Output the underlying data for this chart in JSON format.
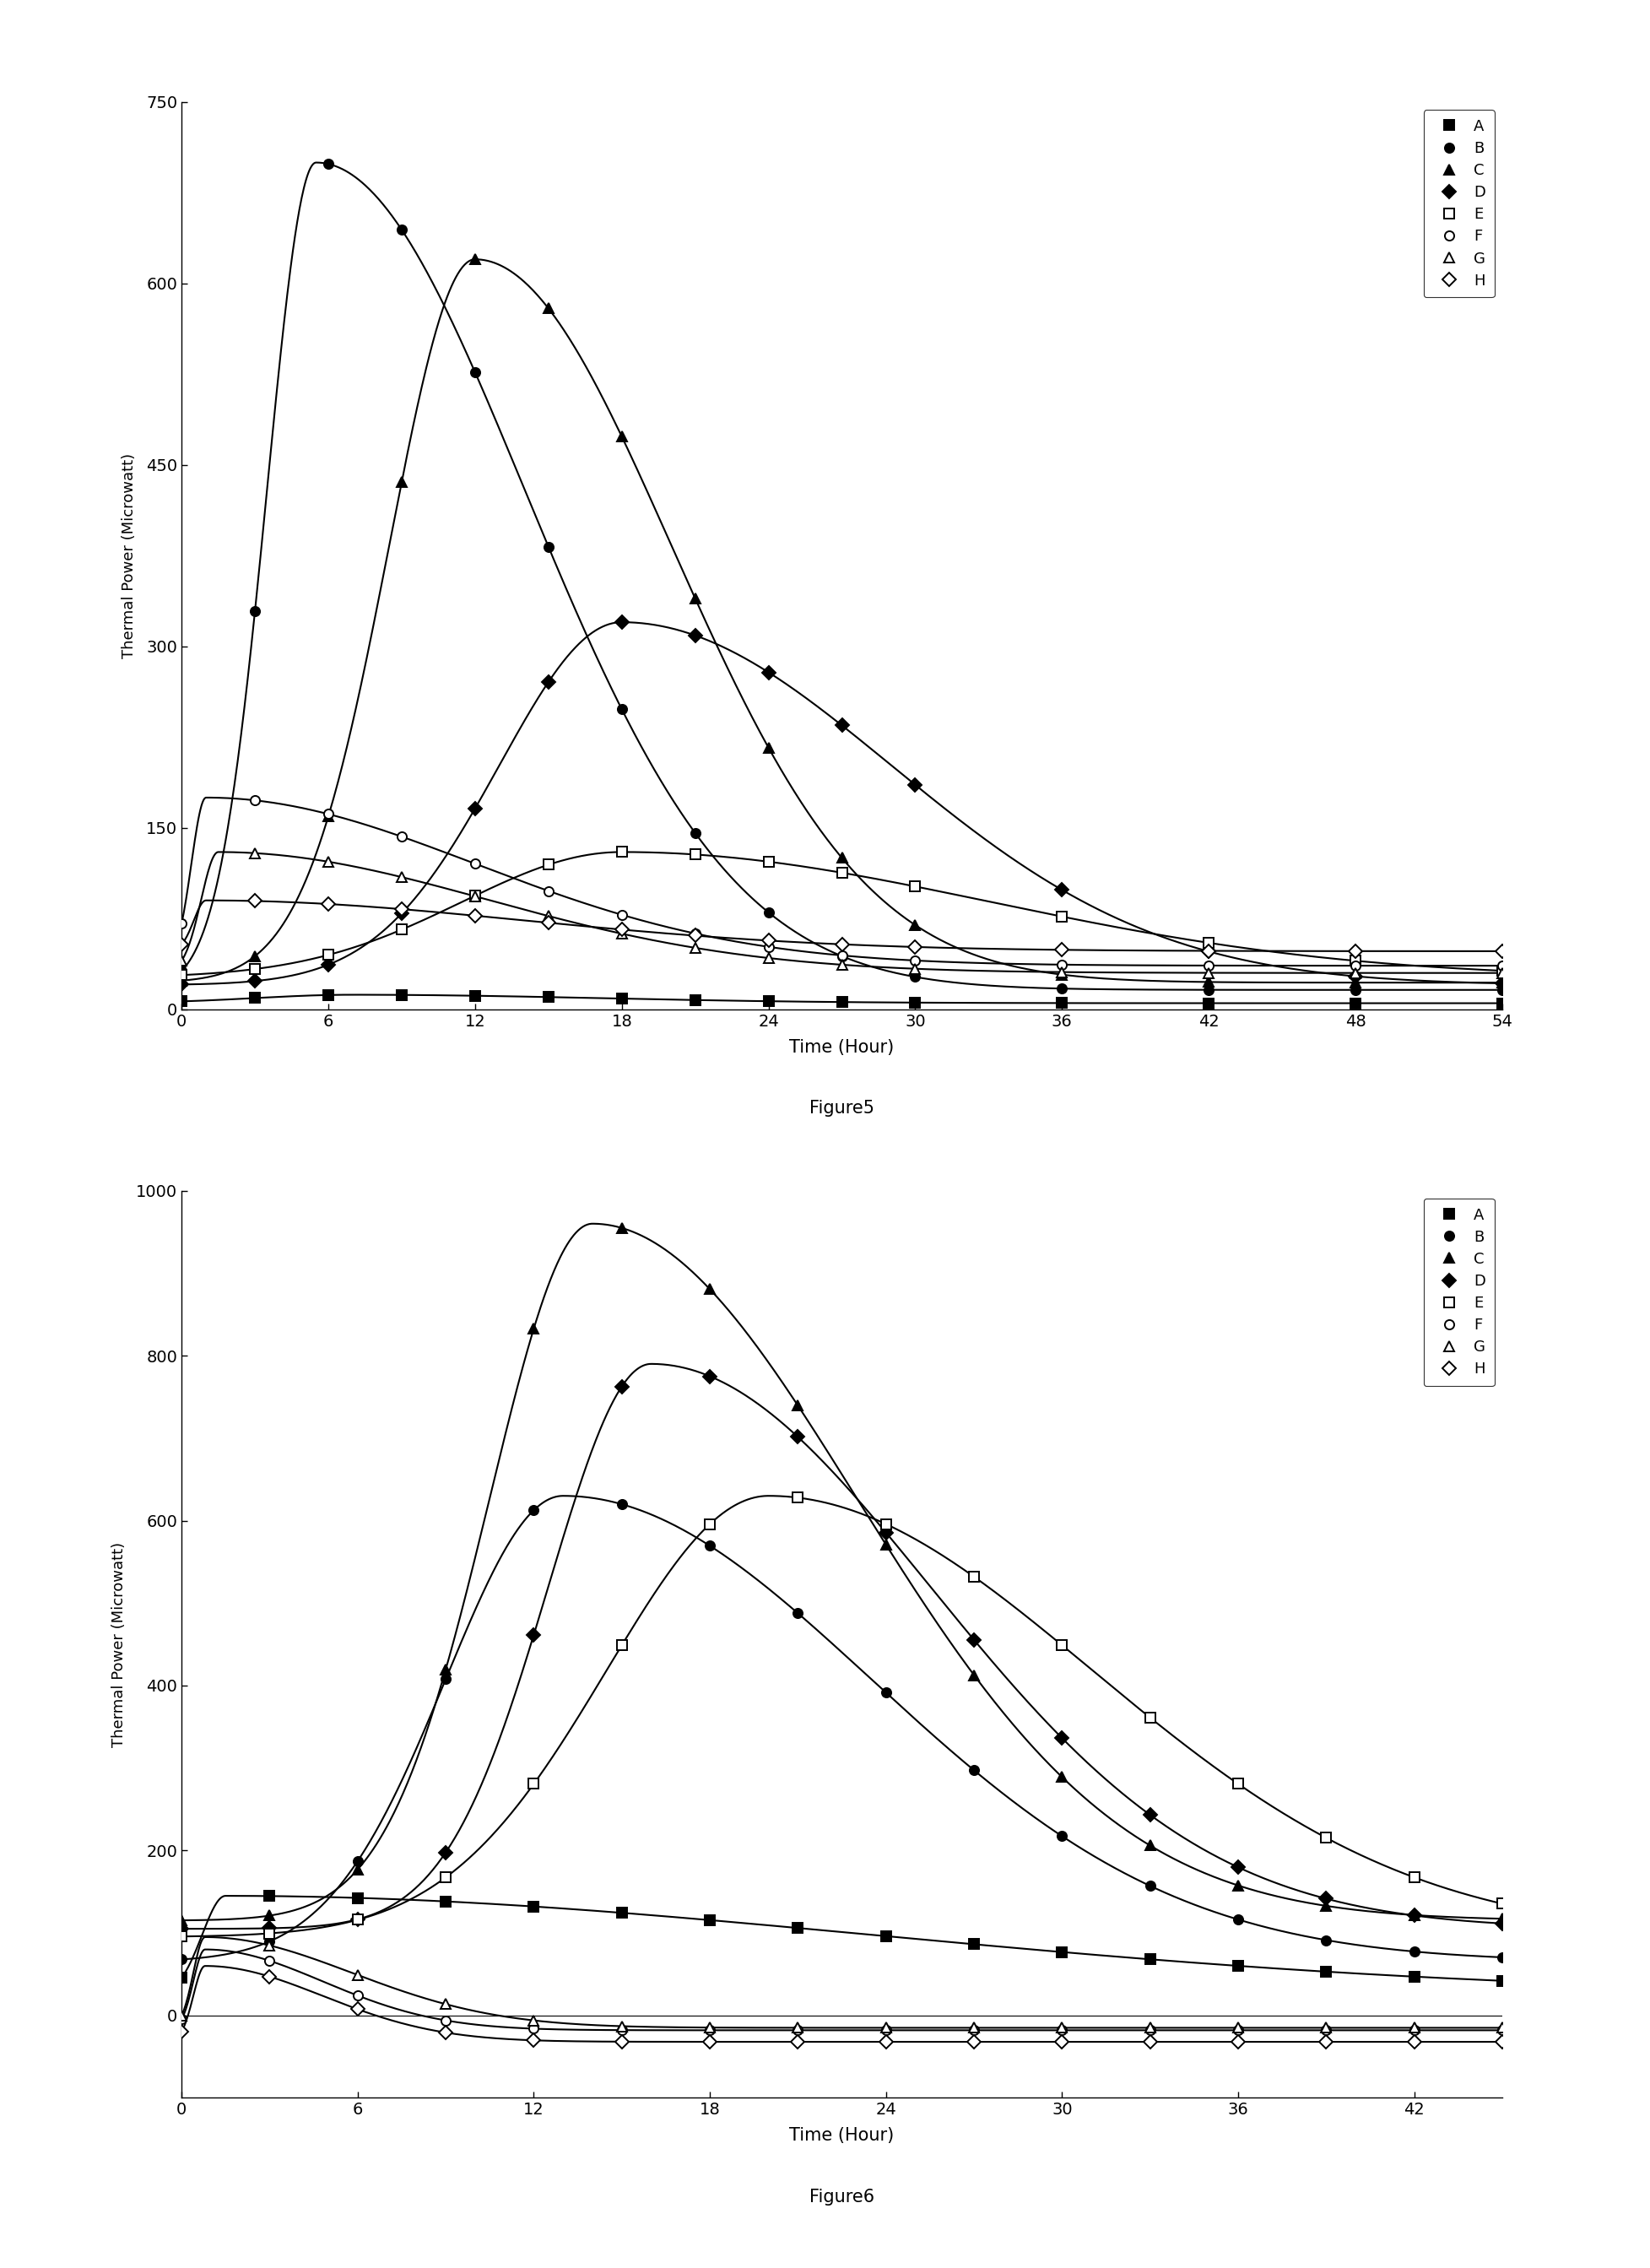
{
  "fig5": {
    "caption": "Figure5",
    "xlabel": "Time (Hour)",
    "ylabel": "Thermal Power (Microwatt)",
    "xlim": [
      0,
      54
    ],
    "ylim": [
      0,
      750
    ],
    "yticks": [
      0,
      150,
      300,
      450,
      600,
      750
    ],
    "xticks": [
      0,
      6,
      12,
      18,
      24,
      30,
      36,
      42,
      48,
      54
    ],
    "series": [
      {
        "label": "A",
        "marker": "s",
        "filled": true,
        "peak_x": 7.0,
        "peak_y": 12,
        "rise_s": 4.0,
        "fall_s": 10.0,
        "base": 5
      },
      {
        "label": "B",
        "marker": "o",
        "filled": true,
        "peak_x": 5.5,
        "peak_y": 700,
        "rise_s": 2.0,
        "fall_s": 8.5,
        "base": 16
      },
      {
        "label": "C",
        "marker": "^",
        "filled": true,
        "peak_x": 12.0,
        "peak_y": 620,
        "rise_s": 3.5,
        "fall_s": 8.0,
        "base": 22
      },
      {
        "label": "D",
        "marker": "D",
        "filled": true,
        "peak_x": 18.0,
        "peak_y": 320,
        "rise_s": 5.0,
        "fall_s": 11.0,
        "base": 20
      },
      {
        "label": "E",
        "marker": "s",
        "filled": false,
        "peak_x": 18.0,
        "peak_y": 130,
        "rise_s": 6.5,
        "fall_s": 15.0,
        "base": 26
      },
      {
        "label": "F",
        "marker": "o",
        "filled": false,
        "peak_x": 1.0,
        "peak_y": 175,
        "rise_s": 0.6,
        "fall_s": 11.0,
        "base": 36
      },
      {
        "label": "G",
        "marker": "^",
        "filled": false,
        "peak_x": 1.5,
        "peak_y": 130,
        "rise_s": 0.7,
        "fall_s": 11.0,
        "base": 30
      },
      {
        "label": "H",
        "marker": "D",
        "filled": false,
        "peak_x": 1.0,
        "peak_y": 90,
        "rise_s": 0.5,
        "fall_s": 13.0,
        "base": 48
      }
    ],
    "marker_times": [
      0,
      3,
      6,
      9,
      12,
      15,
      18,
      21,
      24,
      27,
      30,
      36,
      42,
      48,
      54
    ]
  },
  "fig6": {
    "caption": "Figure6",
    "xlabel": "Time (Hour)",
    "ylabel": "Thermal Power (Microwatt)",
    "xlim": [
      0,
      45
    ],
    "ylim": [
      -100,
      1000
    ],
    "yticks": [
      0,
      200,
      400,
      600,
      800,
      1000
    ],
    "xticks": [
      0,
      6,
      12,
      18,
      24,
      30,
      36,
      42
    ],
    "series": [
      {
        "label": "A",
        "marker": "s",
        "filled": true,
        "peak_x": 1.5,
        "peak_y": 145,
        "rise_s": 0.8,
        "fall_s": 22.0,
        "base": 25
      },
      {
        "label": "B",
        "marker": "o",
        "filled": true,
        "peak_x": 13.0,
        "peak_y": 630,
        "rise_s": 4.0,
        "fall_s": 10.5,
        "base": 65
      },
      {
        "label": "C",
        "marker": "^",
        "filled": true,
        "peak_x": 14.0,
        "peak_y": 960,
        "rise_s": 3.5,
        "fall_s": 9.0,
        "base": 115
      },
      {
        "label": "D",
        "marker": "D",
        "filled": true,
        "peak_x": 16.0,
        "peak_y": 790,
        "rise_s": 3.5,
        "fall_s": 9.5,
        "base": 105
      },
      {
        "label": "E",
        "marker": "s",
        "filled": false,
        "peak_x": 20.0,
        "peak_y": 630,
        "rise_s": 5.5,
        "fall_s": 11.0,
        "base": 95
      },
      {
        "label": "F",
        "marker": "o",
        "filled": false,
        "peak_x": 0.8,
        "peak_y": 80,
        "rise_s": 0.4,
        "fall_s": 4.0,
        "base": -18
      },
      {
        "label": "G",
        "marker": "^",
        "filled": false,
        "peak_x": 0.8,
        "peak_y": 95,
        "rise_s": 0.4,
        "fall_s": 5.0,
        "base": -15
      },
      {
        "label": "H",
        "marker": "D",
        "filled": false,
        "peak_x": 0.8,
        "peak_y": 60,
        "rise_s": 0.4,
        "fall_s": 4.0,
        "base": -32
      }
    ],
    "marker_times": [
      0,
      3,
      6,
      9,
      12,
      15,
      18,
      21,
      24,
      27,
      30,
      33,
      36,
      39,
      42,
      45
    ]
  }
}
